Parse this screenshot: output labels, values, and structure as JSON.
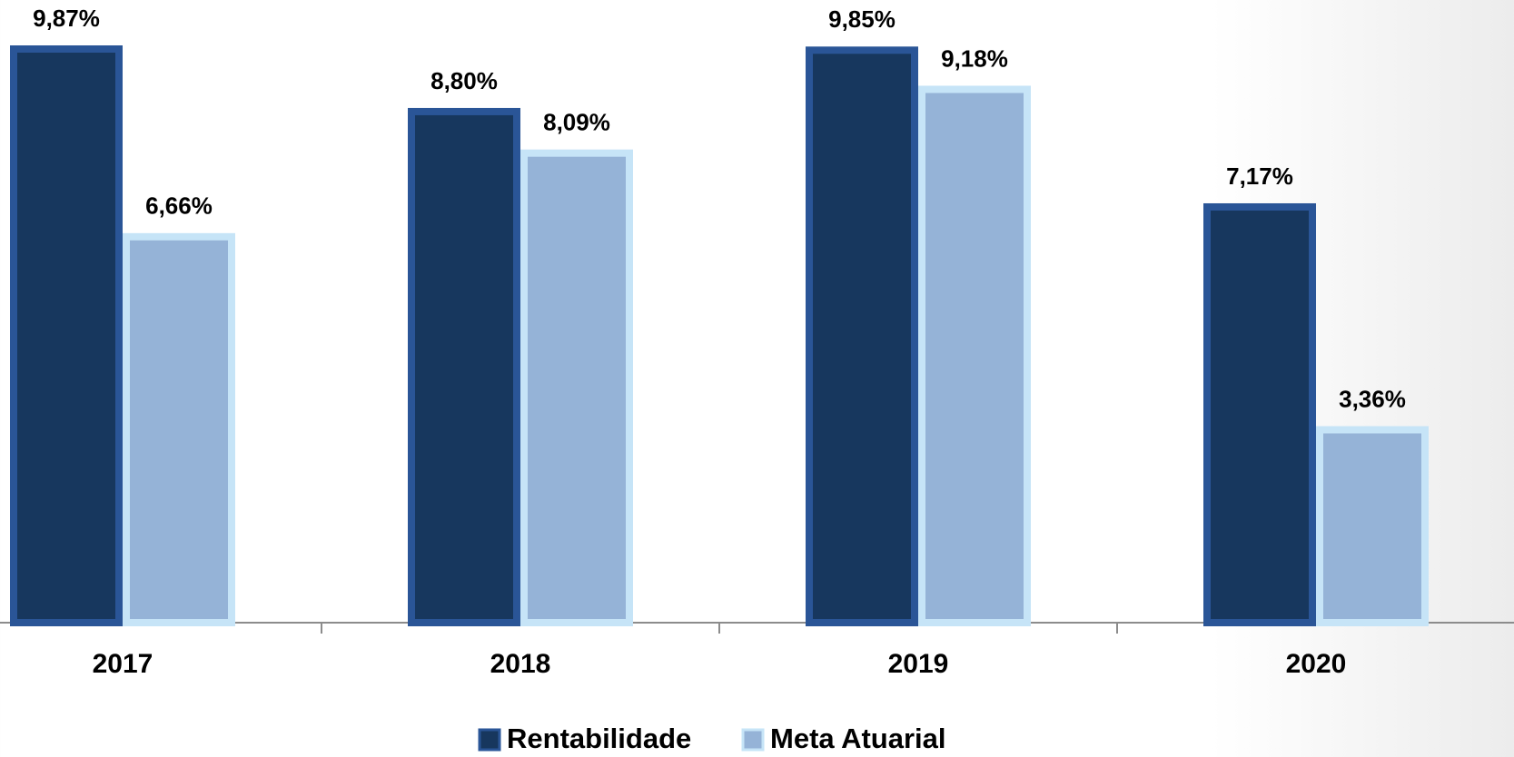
{
  "chart_data": {
    "type": "bar",
    "categories": [
      "2017",
      "2018",
      "2019",
      "2020"
    ],
    "series": [
      {
        "name": "Rentabilidade",
        "color": "#17375e",
        "values": [
          9.87,
          8.8,
          9.85,
          7.17
        ],
        "value_labels": [
          "9,87%",
          "8,80%",
          "9,85%",
          "7,17%"
        ]
      },
      {
        "name": "Meta Atuarial",
        "color": "#95b3d7",
        "values": [
          6.66,
          8.09,
          9.18,
          3.36
        ],
        "value_labels": [
          "6,66%",
          "8,09%",
          "9,18%",
          "3,36%"
        ]
      }
    ]
  }
}
